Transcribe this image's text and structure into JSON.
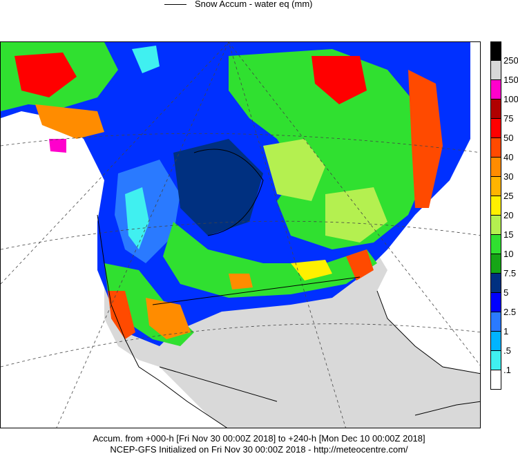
{
  "legend": {
    "line_label": "Snow Accum - water eq (mm)"
  },
  "colorbar": {
    "labels": [
      "250",
      "150",
      "100",
      "75",
      "50",
      "40",
      "30",
      "25",
      "20",
      "15",
      "10",
      "7.5",
      "5",
      "2.5",
      "1",
      ".5",
      ".1"
    ],
    "colors": [
      "#000000",
      "#d8d8d8",
      "#ff00cc",
      "#b00000",
      "#ff0000",
      "#ff4a00",
      "#ff8c00",
      "#ffb400",
      "#fff000",
      "#b4f050",
      "#30e030",
      "#16a516",
      "#003080",
      "#0000ff",
      "#2a7aff",
      "#00b4ff",
      "#40f0f0",
      "#ffffff"
    ]
  },
  "footer": {
    "line1": "Accum. from +000-h [Fri Nov 30 00:00Z 2018] to +240-h [Mon Dec 10 00:00Z 2018]",
    "line2": "NCEP-GFS Initialized on Fri Nov 30 00:00Z 2018 - http://meteocentre.com/"
  }
}
